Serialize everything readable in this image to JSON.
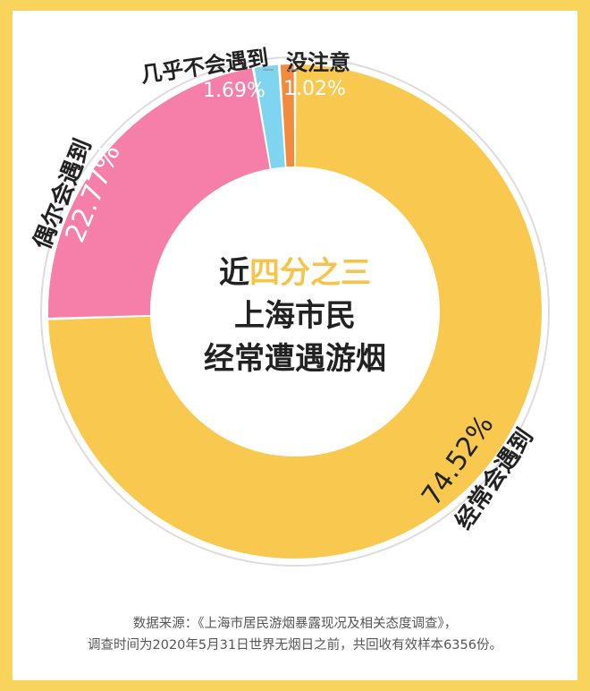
{
  "headline": {
    "line1_prefix": "近",
    "line1_highlight": "四分之三",
    "line2": "上海市民",
    "line3": "经常遭遇游烟"
  },
  "footnote": {
    "line1": "数据来源：《上海市居民游烟暴露现况及相关态度调查》，",
    "line2": "调查时间为2020年5月31日世界无烟日之前，共回收有效样本6356份。"
  },
  "colors": {
    "background": "#F9D45C",
    "highlight": "#F7C44A",
    "ring_outline": "#DDDDDD"
  },
  "chart_data": {
    "type": "pie",
    "donut": true,
    "slices": [
      {
        "name": "经常会遇到",
        "value": 74.52,
        "label": "74.52%",
        "color": "#F9C84E"
      },
      {
        "name": "偶尔会遇到",
        "value": 22.77,
        "label": "22.77%",
        "color": "#F57FA8"
      },
      {
        "name": "几乎不会遇到",
        "value": 1.69,
        "label": "1.69%",
        "color": "#7FD4F0"
      },
      {
        "name": "没注意",
        "value": 1.02,
        "label": "1.02%",
        "color": "#F28B3F"
      }
    ]
  }
}
